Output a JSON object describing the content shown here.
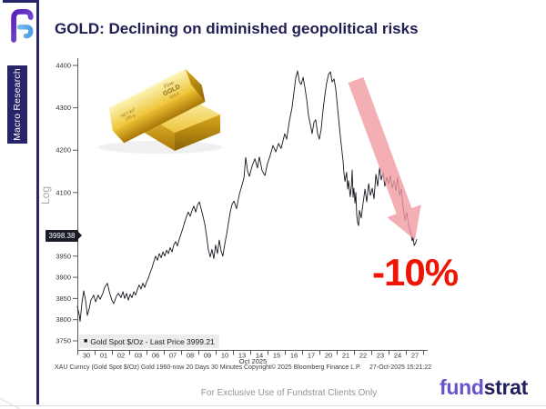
{
  "page": {
    "title": "GOLD: Declining on diminished geopolitical risks",
    "sidebar_label": "Macro Research",
    "annotation": "-10%",
    "footer_note": "For Exclusive Use of Fundstrat Clients Only",
    "brand_first": "fund",
    "brand_second": "strat"
  },
  "colors": {
    "navy": "#27246a",
    "title_navy": "#1e1e52",
    "line": "#15151f",
    "arrow_pink": "#f09ba1",
    "annotation_red": "#ed1505",
    "brand_purple": "#6a52cc",
    "brand_navy": "#22215b",
    "legend_bg": "#ececec",
    "badge_bg": "#191b26"
  },
  "bloomberg": {
    "legend_marker": "■",
    "legend_text": "Gold Spot $/Oz - Last Price 3999.21",
    "axis_mode": "Log",
    "last_price_badge": "3998.38",
    "source_left": "XAU Curncy (Gold Spot  $/Oz) Gold 1960-now 20 Days 30 Minutes",
    "source_center": "Copyright© 2025 Bloomberg Finance L.P.",
    "source_right": "27-Oct-2025 15:21:22"
  },
  "gold_bars": {
    "line1": "Fine",
    "line2": "GOLD",
    "line3": "999.9",
    "line4": "NET WT",
    "line5": "100 g"
  },
  "chart_data": {
    "type": "line",
    "title": "Gold Spot $/Oz - Last Price 3999.21",
    "y_scale": "log",
    "grid": false,
    "legend_position": "bottom-left",
    "x_tick_labels": [
      "30",
      "01",
      "02",
      "03",
      "06",
      "07",
      "08",
      "09",
      "10",
      "13",
      "14",
      "15",
      "16",
      "17",
      "20",
      "21",
      "22",
      "23",
      "24",
      "27"
    ],
    "x_axis_label": "Oct 2025",
    "y_ticks": [
      3750,
      3800,
      3850,
      3900,
      3950,
      4100,
      4200,
      4300,
      4400
    ],
    "ylim": [
      3735,
      4420
    ],
    "last_price": 3999.21,
    "series": [
      {
        "name": "Gold Spot $/Oz",
        "color": "#15151f",
        "points": [
          [
            -0.53,
            3832
          ],
          [
            -0.42,
            3812
          ],
          [
            -0.37,
            3796
          ],
          [
            -0.26,
            3840
          ],
          [
            -0.16,
            3868
          ],
          [
            -0.05,
            3846
          ],
          [
            0.05,
            3810
          ],
          [
            0.16,
            3826
          ],
          [
            0.26,
            3846
          ],
          [
            0.42,
            3858
          ],
          [
            0.53,
            3842
          ],
          [
            0.68,
            3858
          ],
          [
            0.79,
            3848
          ],
          [
            0.95,
            3862
          ],
          [
            1.05,
            3876
          ],
          [
            1.21,
            3886
          ],
          [
            1.32,
            3866
          ],
          [
            1.47,
            3846
          ],
          [
            1.58,
            3838
          ],
          [
            1.74,
            3856
          ],
          [
            1.84,
            3862
          ],
          [
            2.0,
            3852
          ],
          [
            2.11,
            3866
          ],
          [
            2.21,
            3850
          ],
          [
            2.32,
            3862
          ],
          [
            2.42,
            3846
          ],
          [
            2.53,
            3860
          ],
          [
            2.63,
            3852
          ],
          [
            2.74,
            3866
          ],
          [
            2.84,
            3858
          ],
          [
            2.95,
            3872
          ],
          [
            3.05,
            3882
          ],
          [
            3.16,
            3872
          ],
          [
            3.26,
            3886
          ],
          [
            3.37,
            3876
          ],
          [
            3.47,
            3888
          ],
          [
            3.58,
            3898
          ],
          [
            3.68,
            3910
          ],
          [
            3.79,
            3922
          ],
          [
            3.89,
            3936
          ],
          [
            4.0,
            3950
          ],
          [
            4.11,
            3940
          ],
          [
            4.21,
            3956
          ],
          [
            4.32,
            3946
          ],
          [
            4.42,
            3960
          ],
          [
            4.53,
            3950
          ],
          [
            4.63,
            3964
          ],
          [
            4.74,
            3956
          ],
          [
            4.84,
            3970
          ],
          [
            4.95,
            3960
          ],
          [
            5.05,
            3976
          ],
          [
            5.16,
            3984
          ],
          [
            5.26,
            3974
          ],
          [
            5.37,
            3990
          ],
          [
            5.47,
            4002
          ],
          [
            5.58,
            4016
          ],
          [
            5.68,
            4030
          ],
          [
            5.79,
            4044
          ],
          [
            5.89,
            4054
          ],
          [
            6.0,
            4044
          ],
          [
            6.11,
            4058
          ],
          [
            6.21,
            4068
          ],
          [
            6.32,
            4054
          ],
          [
            6.42,
            4070
          ],
          [
            6.53,
            4078
          ],
          [
            6.63,
            4062
          ],
          [
            6.74,
            4044
          ],
          [
            6.84,
            4026
          ],
          [
            6.95,
            3996
          ],
          [
            7.05,
            3966
          ],
          [
            7.16,
            3948
          ],
          [
            7.26,
            3966
          ],
          [
            7.37,
            3944
          ],
          [
            7.47,
            3976
          ],
          [
            7.58,
            3956
          ],
          [
            7.68,
            3988
          ],
          [
            7.79,
            3962
          ],
          [
            7.89,
            3950
          ],
          [
            8.0,
            3978
          ],
          [
            8.11,
            4002
          ],
          [
            8.21,
            4028
          ],
          [
            8.32,
            4055
          ],
          [
            8.42,
            4072
          ],
          [
            8.53,
            4080
          ],
          [
            8.68,
            4062
          ],
          [
            8.84,
            4096
          ],
          [
            9.0,
            4118
          ],
          [
            9.11,
            4135
          ],
          [
            9.21,
            4183
          ],
          [
            9.32,
            4150
          ],
          [
            9.42,
            4138
          ],
          [
            9.58,
            4162
          ],
          [
            9.74,
            4180
          ],
          [
            9.89,
            4158
          ],
          [
            10.0,
            4184
          ],
          [
            10.16,
            4152
          ],
          [
            10.32,
            4140
          ],
          [
            10.47,
            4168
          ],
          [
            10.63,
            4188
          ],
          [
            10.79,
            4211
          ],
          [
            10.95,
            4196
          ],
          [
            11.11,
            4216
          ],
          [
            11.26,
            4204
          ],
          [
            11.47,
            4239
          ],
          [
            11.58,
            4226
          ],
          [
            11.74,
            4270
          ],
          [
            11.89,
            4300
          ],
          [
            12.0,
            4336
          ],
          [
            12.11,
            4372
          ],
          [
            12.21,
            4387
          ],
          [
            12.32,
            4361
          ],
          [
            12.42,
            4355
          ],
          [
            12.53,
            4372
          ],
          [
            12.63,
            4348
          ],
          [
            12.74,
            4319
          ],
          [
            12.84,
            4282
          ],
          [
            12.95,
            4261
          ],
          [
            13.05,
            4239
          ],
          [
            13.16,
            4266
          ],
          [
            13.26,
            4272
          ],
          [
            13.37,
            4240
          ],
          [
            13.47,
            4226
          ],
          [
            13.58,
            4250
          ],
          [
            13.68,
            4293
          ],
          [
            13.79,
            4330
          ],
          [
            13.89,
            4358
          ],
          [
            14.0,
            4379
          ],
          [
            14.11,
            4385
          ],
          [
            14.21,
            4361
          ],
          [
            14.32,
            4368
          ],
          [
            14.42,
            4344
          ],
          [
            14.53,
            4297
          ],
          [
            14.63,
            4254
          ],
          [
            14.74,
            4211
          ],
          [
            14.84,
            4175
          ],
          [
            14.89,
            4148
          ],
          [
            14.95,
            4126
          ],
          [
            15.05,
            4148
          ],
          [
            15.11,
            4108
          ],
          [
            15.16,
            4128
          ],
          [
            15.26,
            4090
          ],
          [
            15.32,
            4115
          ],
          [
            15.37,
            4153
          ],
          [
            15.42,
            4089
          ],
          [
            15.47,
            4110
          ],
          [
            15.53,
            4075
          ],
          [
            15.58,
            4100
          ],
          [
            15.63,
            4048
          ],
          [
            15.68,
            4030
          ],
          [
            15.74,
            4022
          ],
          [
            15.79,
            4058
          ],
          [
            15.89,
            4040
          ],
          [
            16.0,
            4075
          ],
          [
            16.11,
            4108
          ],
          [
            16.21,
            4078
          ],
          [
            16.32,
            4121
          ],
          [
            16.42,
            4093
          ],
          [
            16.53,
            4110
          ],
          [
            16.63,
            4085
          ],
          [
            16.74,
            4143
          ],
          [
            16.84,
            4115
          ],
          [
            16.95,
            4158
          ],
          [
            17.05,
            4130
          ],
          [
            17.16,
            4147
          ],
          [
            17.26,
            4115
          ],
          [
            17.37,
            4136
          ],
          [
            17.47,
            4120
          ],
          [
            17.58,
            4140
          ],
          [
            17.68,
            4110
          ],
          [
            17.79,
            4128
          ],
          [
            17.89,
            4105
          ],
          [
            18.0,
            4136
          ],
          [
            18.11,
            4093
          ],
          [
            18.21,
            4108
          ],
          [
            18.32,
            4065
          ],
          [
            18.42,
            4035
          ],
          [
            18.53,
            4052
          ],
          [
            18.63,
            4022
          ],
          [
            18.74,
            4007
          ],
          [
            18.84,
            3986
          ],
          [
            18.89,
            3997
          ],
          [
            18.95,
            3975
          ],
          [
            19.05,
            3982
          ],
          [
            19.11,
            3990
          ]
        ]
      }
    ]
  }
}
